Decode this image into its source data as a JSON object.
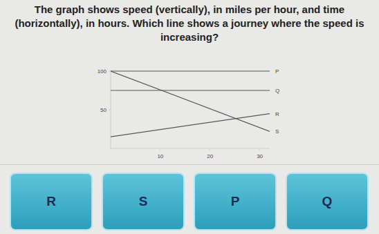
{
  "chart_data": {
    "type": "line",
    "title": "The graph shows speed (vertically), in miles per hour, and time (horizontally), in hours. Which line shows a journey where the speed is increasing?",
    "x": [
      0,
      32
    ],
    "series": [
      {
        "name": "P",
        "color": "#555555",
        "values": [
          100,
          100
        ]
      },
      {
        "name": "Q",
        "color": "#555555",
        "values": [
          75,
          75
        ]
      },
      {
        "name": "R",
        "color": "#555555",
        "values": [
          15,
          45
        ]
      },
      {
        "name": "S",
        "color": "#555555",
        "values": [
          100,
          22
        ]
      }
    ],
    "xlim": [
      0,
      32
    ],
    "xticks": [
      10,
      20,
      30
    ],
    "ylim": [
      0,
      100
    ],
    "yticks": [
      50,
      100
    ],
    "grid": false
  },
  "answers": [
    "R",
    "S",
    "P",
    "Q"
  ]
}
